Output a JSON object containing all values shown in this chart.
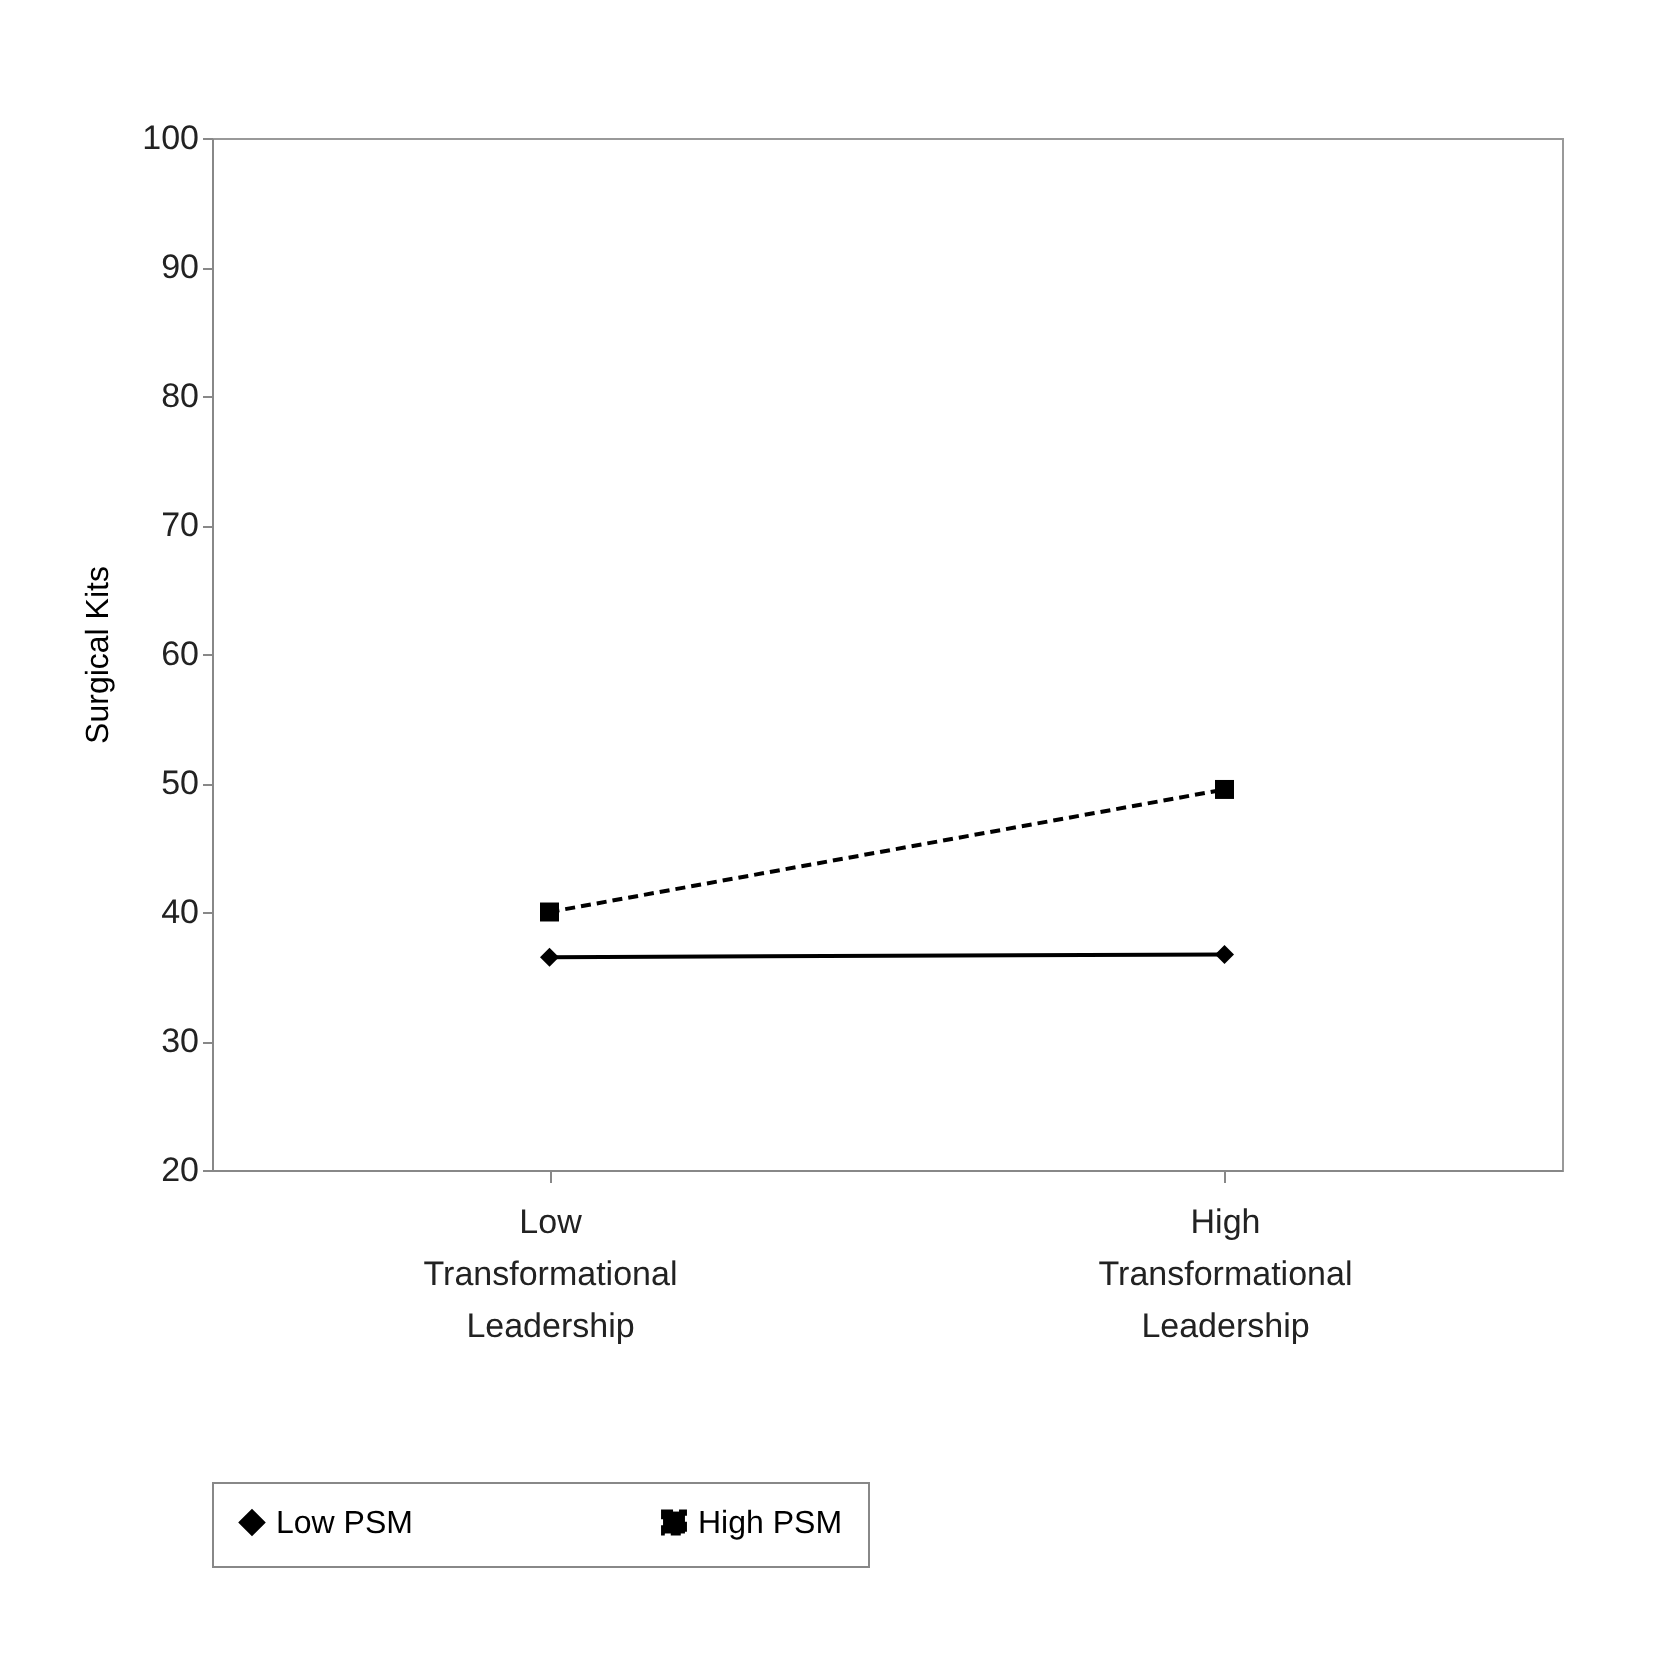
{
  "chart_data": {
    "type": "line",
    "ylabel": "Surgical Kits",
    "categories": [
      "Low Transformational Leadership",
      "High Transformational Leadership"
    ],
    "series": [
      {
        "name": "Low PSM",
        "color": "#000000",
        "values": [
          36.5,
          36.7
        ],
        "marker": "diamond",
        "line_style": "solid"
      },
      {
        "name": "High PSM",
        "color": "#000000",
        "values": [
          40.0,
          49.5
        ],
        "marker": "square",
        "line_style": "dashed"
      }
    ],
    "ylim": [
      20,
      100
    ],
    "yticks": [
      20,
      30,
      40,
      50,
      60,
      70,
      80,
      90,
      100
    ],
    "grid": false,
    "legend": "bottom"
  }
}
